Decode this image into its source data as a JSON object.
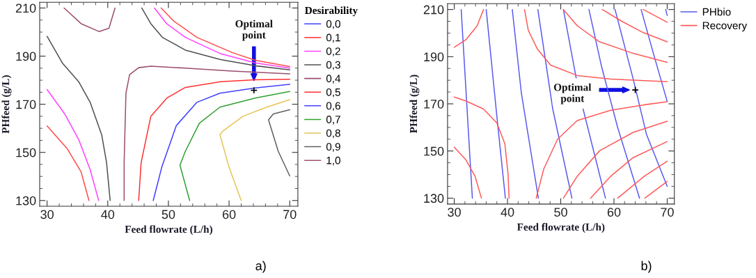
{
  "chart_data": [
    {
      "type": "line",
      "xlabel": "Feed flowrate (L/h)",
      "ylabel": "PHfeed (g/L)",
      "legend_title": "Desirability",
      "legend": "right",
      "grid": false,
      "xlim": [
        28.78,
        71.34
      ],
      "ylim": [
        127.6,
        212.4
      ],
      "xticks": [
        30,
        40,
        50,
        60,
        70
      ],
      "yticks": [
        130,
        150,
        170,
        190,
        210
      ],
      "annotations": [
        "Optimal\npoint",
        "a)"
      ],
      "series": [
        {
          "name": "0,0",
          "color": "#4040ff"
        },
        {
          "name": "0,1",
          "color": "#ff4a4a",
          "x": [
            30,
            33.3,
            35.6,
            36.9
          ],
          "values": [
            161,
            151.6,
            141.9,
            130
          ]
        },
        {
          "name": "0,2",
          "color": "#ff40ff",
          "x": [
            30,
            32.9,
            35.2,
            37.1,
            38.5
          ],
          "values": [
            176.1,
            166,
            155.4,
            142.8,
            130
          ]
        },
        {
          "name": "0,3",
          "color": "#505050",
          "x": [
            30,
            32.5,
            35.2,
            37.1,
            39.0,
            39.8,
            40.4
          ],
          "values": [
            198.2,
            187.2,
            179.4,
            170.8,
            157.3,
            145.8,
            130
          ]
        },
        {
          "name": "0,4",
          "color": "#9b4d6e",
          "x": [
            42.7,
            42.7,
            43.0,
            43.6,
            45.1,
            47.1,
            52.8,
            60.5,
            70
          ],
          "values": [
            130,
            145.7,
            174.6,
            182.3,
            185.2,
            185.8,
            185,
            183.8,
            182.6
          ]
        },
        {
          "name": "0,5",
          "color": "#ff3030",
          "x": [
            45.1,
            45.5,
            47.1,
            49.8,
            52.8,
            58.6,
            64.3,
            70
          ],
          "values": [
            130,
            145.7,
            165,
            172.7,
            177,
            179.4,
            180.2,
            180.4
          ]
        },
        {
          "name": "0,6",
          "color": "#4040ff",
          "x": [
            47.5,
            48.9,
            51.3,
            54.7,
            58.5,
            64.3,
            70
          ],
          "values": [
            130,
            143.8,
            161.1,
            170.8,
            174.6,
            176.8,
            178.3
          ]
        },
        {
          "name": "0,7",
          "color": "#30a030",
          "x": [
            53.5,
            51.9,
            52.8,
            55.1,
            58.5,
            64.3,
            70
          ],
          "values": [
            130,
            144.7,
            150.5,
            162.1,
            168.8,
            172.6,
            175.3
          ]
        },
        {
          "name": "0,8",
          "color": "#e6c455",
          "x": [
            62.0,
            60.0,
            58.5,
            58.9,
            62.3,
            66.2,
            70
          ],
          "values": [
            130,
            143.8,
            157.3,
            158.7,
            165,
            168.8,
            171.9
          ]
        },
        {
          "name": "0,9",
          "color": "#606060",
          "x": [
            70,
            68.1,
            66.5,
            67.3,
            70
          ],
          "values": [
            140.2,
            150.5,
            163.5,
            166,
            167.7
          ]
        },
        {
          "name": "1,0",
          "color": "#a05070"
        },
        {
          "color": "#ff4a4a",
          "x": [
            48.8,
            50.9,
            54.7,
            60.5,
            64.3,
            70
          ],
          "values": [
            210,
            204.5,
            197.8,
            191.5,
            188.3,
            185.7
          ]
        },
        {
          "color": "#ff40ff",
          "x": [
            47.7,
            49.7,
            52.8,
            58.6,
            64.3,
            70
          ],
          "values": [
            210,
            203.5,
            197.8,
            191,
            187.2,
            185
          ]
        },
        {
          "color": "#505050",
          "x": [
            45.6,
            47.1,
            49.0,
            52.8,
            58.6,
            64.3,
            70
          ],
          "values": [
            210,
            203.5,
            197.8,
            192.5,
            188.6,
            186,
            184.3
          ]
        },
        {
          "color": "#9b4d6e",
          "x": [
            32.8,
            35.6,
            38.6,
            40.2,
            41.2
          ],
          "values": [
            210,
            203.5,
            200.2,
            201.6,
            210
          ]
        },
        {
          "type": "scatter",
          "marker": "cross",
          "color": "#000000",
          "x": [
            64.1
          ],
          "values": [
            175.8
          ]
        }
      ]
    },
    {
      "type": "line",
      "xlabel": "Feed flowrate (L/h)",
      "ylabel": "PHfeed (g/L)",
      "legend": "right",
      "grid": false,
      "xlim": [
        28.74,
        71.34
      ],
      "ylim": [
        127.5,
        212.5
      ],
      "xticks": [
        30,
        40,
        50,
        60,
        70
      ],
      "yticks": [
        130,
        150,
        170,
        190,
        210
      ],
      "annotations": [
        "Optimal\npoint",
        "b)"
      ],
      "series": [
        {
          "name": "PHbio",
          "color": "#5a5af0",
          "x": [
            31.3,
            33.4
          ],
          "values": [
            210,
            130
          ]
        },
        {
          "name": "Recovery",
          "color": "#ff5a5a",
          "x": [
            30,
            32.2,
            34.3,
            35.5
          ],
          "values": [
            194.0,
            197.2,
            203.1,
            210
          ]
        },
        {
          "color": "#5a5af0",
          "x": [
            36.0,
            38.0,
            39.6
          ],
          "values": [
            210,
            164.8,
            130
          ]
        },
        {
          "color": "#5a5af0",
          "x": [
            40.9,
            42.6,
            45.8
          ],
          "values": [
            210,
            174.6,
            130
          ]
        },
        {
          "color": "#5a5af0",
          "x": [
            45.7,
            48.5,
            52.1
          ],
          "values": [
            210,
            167.8,
            130
          ]
        },
        {
          "color": "#5a5af0",
          "x": [
            50.5,
            52.9,
            53.5,
            54.2,
            58.4
          ],
          "values": [
            210,
            181.0,
            null,
            167.8,
            130
          ]
        },
        {
          "color": "#5a5af0",
          "x": [
            55.3,
            57.7,
            60.7,
            64.8
          ],
          "values": [
            210,
            185.5,
            159.9,
            130
          ]
        },
        {
          "color": "#5a5af0",
          "x": [
            60.2,
            63.6,
            66.1,
            70
          ],
          "values": [
            210,
            180.6,
            157.1,
            135
          ]
        },
        {
          "color": "#5a5af0",
          "x": [
            65.1,
            67.4,
            70
          ],
          "values": [
            210,
            191.4,
            171.0
          ]
        },
        {
          "color": "#5a5af0",
          "x": [
            69.7,
            70
          ],
          "values": [
            210,
            207.5
          ]
        },
        {
          "color": "#ff5a5a",
          "x": [
            30,
            32.2,
            35.5,
            38.0,
            39.5,
            40.1,
            40.3
          ],
          "values": [
            172.9,
            171.2,
            167.8,
            161.9,
            153.1,
            140.3,
            130
          ]
        },
        {
          "color": "#ff5a5a",
          "x": [
            30,
            32.2,
            33.9,
            35.1
          ],
          "values": [
            151.6,
            146.2,
            139.3,
            130
          ]
        },
        {
          "color": "#ff5a5a",
          "x": [
            43.2,
            43.9,
            45.6,
            48.1,
            53.1,
            59.4,
            70
          ],
          "values": [
            210,
            201.2,
            193.3,
            186.4,
            182.0,
            180.5,
            179.4
          ]
        },
        {
          "color": "#ff5a5a",
          "x": [
            45.4,
            46.8,
            49.4,
            53.1,
            59.4,
            65.7,
            70
          ],
          "values": [
            130,
            142.3,
            155,
            162.9,
            167.3,
            169.6,
            170.9
          ]
        },
        {
          "color": "#ff5a5a",
          "x": [
            50.5,
            53.1,
            57.3,
            63.6,
            70
          ],
          "values": [
            130,
            139.3,
            150.1,
            157.9,
            162.6
          ]
        },
        {
          "color": "#ff5a5a",
          "x": [
            55.6,
            59.4,
            63.6,
            70
          ],
          "values": [
            130,
            139.3,
            147.2,
            154.0
          ]
        },
        {
          "color": "#ff5a5a",
          "x": [
            60.7,
            65.7,
            70
          ],
          "values": [
            130,
            139.3,
            145.7
          ]
        },
        {
          "color": "#ff5a5a",
          "x": [
            65.8,
            70
          ],
          "values": [
            130,
            137.1
          ]
        },
        {
          "color": "#ff5a5a",
          "x": [
            50.5,
            53.1,
            57.3,
            63.6,
            70
          ],
          "values": [
            210,
            203.1,
            196.3,
            191.4,
            187.6
          ]
        },
        {
          "color": "#ff5a5a",
          "x": [
            57.8,
            61.4,
            65.5,
            70
          ],
          "values": [
            210,
            205.1,
            200.2,
            196.3
          ]
        },
        {
          "color": "#ff5a5a",
          "x": [
            65.5,
            70
          ],
          "values": [
            210,
            204.6
          ]
        },
        {
          "type": "scatter",
          "marker": "cross",
          "color": "#000000",
          "x": [
            64.0
          ],
          "values": [
            175.9
          ]
        }
      ]
    }
  ]
}
